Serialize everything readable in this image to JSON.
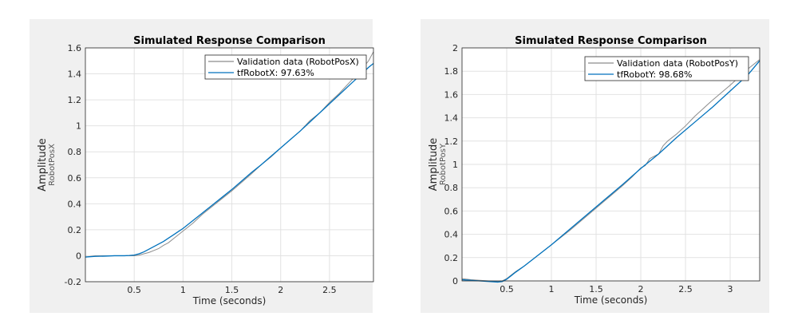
{
  "chart_data": [
    {
      "type": "line",
      "title": "Simulated Response Comparison",
      "xlabel": "Time (seconds)",
      "ylabel": "Amplitude",
      "ylabel_sub": "RobotPosX",
      "xlim": [
        0,
        2.95
      ],
      "ylim": [
        -0.2,
        1.6
      ],
      "xticks": [
        0.5,
        1,
        1.5,
        2,
        2.5
      ],
      "xtick_labels": [
        "0.5",
        "1",
        "1.5",
        "2",
        "2.5"
      ],
      "yticks": [
        -0.2,
        0,
        0.2,
        0.4,
        0.6,
        0.8,
        1,
        1.2,
        1.4,
        1.6
      ],
      "ytick_labels": [
        "-0.2",
        "0",
        "0.2",
        "0.4",
        "0.6",
        "0.8",
        "1",
        "1.2",
        "1.4",
        "1.6"
      ],
      "grid": true,
      "legend_position": "top-right",
      "series": [
        {
          "name": "Validation data (RobotPosX)",
          "color": "#8c8c8c",
          "x": [
            0,
            0.1,
            0.2,
            0.3,
            0.4,
            0.5,
            0.55,
            0.6,
            0.65,
            0.7,
            0.75,
            0.8,
            0.85,
            0.9,
            0.95,
            1.0,
            1.05,
            1.1,
            1.2,
            1.3,
            1.4,
            1.5,
            1.6,
            1.7,
            1.8,
            1.9,
            2.0,
            2.1,
            2.2,
            2.3,
            2.4,
            2.5,
            2.6,
            2.7,
            2.8,
            2.9,
            2.95
          ],
          "y": [
            -0.01,
            0,
            0,
            0,
            0,
            0,
            0.005,
            0.015,
            0.025,
            0.04,
            0.055,
            0.08,
            0.1,
            0.13,
            0.16,
            0.19,
            0.22,
            0.25,
            0.32,
            0.38,
            0.44,
            0.5,
            0.565,
            0.63,
            0.7,
            0.76,
            0.83,
            0.895,
            0.96,
            1.04,
            1.1,
            1.18,
            1.25,
            1.33,
            1.41,
            1.5,
            1.57
          ]
        },
        {
          "name": "tfRobotX: 97.63%",
          "color": "#0072bd",
          "x": [
            0,
            0.1,
            0.2,
            0.3,
            0.4,
            0.45,
            0.5,
            0.55,
            0.6,
            0.65,
            0.7,
            0.75,
            0.8,
            0.85,
            0.9,
            0.95,
            1.0,
            1.1,
            1.2,
            1.3,
            1.4,
            1.5,
            1.6,
            1.7,
            1.8,
            1.9,
            2.0,
            2.1,
            2.2,
            2.3,
            2.4,
            2.5,
            2.6,
            2.7,
            2.8,
            2.9,
            2.95
          ],
          "y": [
            -0.01,
            -0.005,
            -0.003,
            0,
            0,
            0.002,
            0.005,
            0.015,
            0.03,
            0.05,
            0.07,
            0.09,
            0.11,
            0.135,
            0.16,
            0.185,
            0.21,
            0.27,
            0.33,
            0.39,
            0.45,
            0.51,
            0.575,
            0.64,
            0.7,
            0.765,
            0.83,
            0.895,
            0.96,
            1.03,
            1.1,
            1.17,
            1.24,
            1.31,
            1.38,
            1.45,
            1.48
          ]
        }
      ]
    },
    {
      "type": "line",
      "title": "Simulated Response Comparison",
      "xlabel": "Time (seconds)",
      "ylabel": "Amplitude",
      "ylabel_sub": "RobotPosY",
      "xlim": [
        0,
        3.33
      ],
      "ylim": [
        0,
        2
      ],
      "xticks": [
        0.5,
        1,
        1.5,
        2,
        2.5,
        3
      ],
      "xtick_labels": [
        "0.5",
        "1",
        "1.5",
        "2",
        "2.5",
        "3"
      ],
      "yticks": [
        0,
        0.2,
        0.4,
        0.6,
        0.8,
        1,
        1.2,
        1.4,
        1.6,
        1.8,
        2
      ],
      "ytick_labels": [
        "0",
        "0.2",
        "0.4",
        "0.6",
        "0.8",
        "1",
        "1.2",
        "1.4",
        "1.6",
        "1.8",
        "2"
      ],
      "grid": true,
      "legend_position": "top-right",
      "series": [
        {
          "name": "Validation data (RobotPosY)",
          "color": "#8c8c8c",
          "x": [
            0,
            0.1,
            0.2,
            0.3,
            0.4,
            0.45,
            0.5,
            0.55,
            0.6,
            0.7,
            0.8,
            0.9,
            1.0,
            1.2,
            1.4,
            1.6,
            1.8,
            1.9,
            1.95,
            2.0,
            2.05,
            2.1,
            2.2,
            2.25,
            2.3,
            2.4,
            2.5,
            2.6,
            2.8,
            3.0,
            3.2,
            3.33
          ],
          "y": [
            0.02,
            0.01,
            0.005,
            0,
            -0.005,
            0,
            0.02,
            0.05,
            0.08,
            0.13,
            0.19,
            0.25,
            0.31,
            0.43,
            0.56,
            0.69,
            0.82,
            0.89,
            0.93,
            0.97,
            0.99,
            1.05,
            1.09,
            1.16,
            1.2,
            1.26,
            1.33,
            1.41,
            1.55,
            1.68,
            1.82,
            1.9
          ]
        },
        {
          "name": "tfRobotY: 98.68%",
          "color": "#0072bd",
          "x": [
            0,
            0.1,
            0.2,
            0.3,
            0.4,
            0.45,
            0.5,
            0.55,
            0.6,
            0.7,
            0.8,
            0.9,
            1.0,
            1.2,
            1.4,
            1.6,
            1.8,
            2.0,
            2.2,
            2.4,
            2.6,
            2.8,
            3.0,
            3.2,
            3.33
          ],
          "y": [
            0.01,
            0.005,
            0,
            -0.005,
            -0.01,
            -0.005,
            0.015,
            0.045,
            0.075,
            0.13,
            0.19,
            0.25,
            0.31,
            0.44,
            0.57,
            0.7,
            0.83,
            0.965,
            1.09,
            1.23,
            1.36,
            1.49,
            1.63,
            1.77,
            1.89
          ]
        }
      ]
    }
  ]
}
